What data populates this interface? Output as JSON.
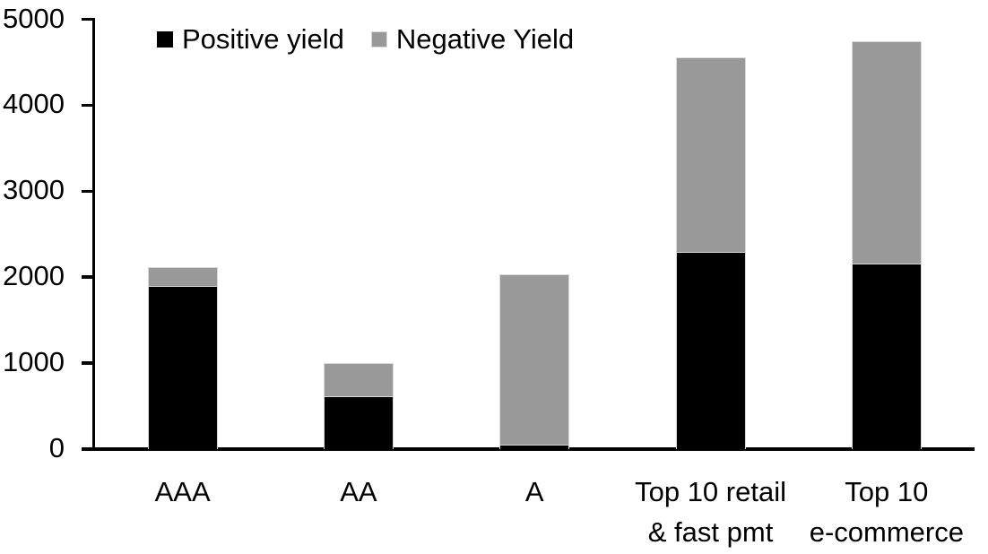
{
  "chart_data": {
    "type": "bar",
    "stacked": true,
    "title": "",
    "xlabel": "",
    "ylabel": "",
    "categories": [
      "AAA",
      "AA",
      "A",
      "Top 10 retail\n& fast pmt",
      "Top 10\ne-commerce"
    ],
    "series": [
      {
        "name": "Positive yield",
        "color": "#000000",
        "values": [
          1890,
          610,
          40,
          2280,
          2150
        ]
      },
      {
        "name": "Negative Yield",
        "color": "#999999",
        "values": [
          230,
          390,
          1990,
          2280,
          2600
        ]
      }
    ],
    "ylim": [
      0,
      5000
    ],
    "yticks": [
      0,
      1000,
      2000,
      3000,
      4000,
      5000
    ],
    "grid": false,
    "legend_position": "top-left",
    "axis_color": "#000000",
    "segment_border_color": "#d9d9d9"
  }
}
